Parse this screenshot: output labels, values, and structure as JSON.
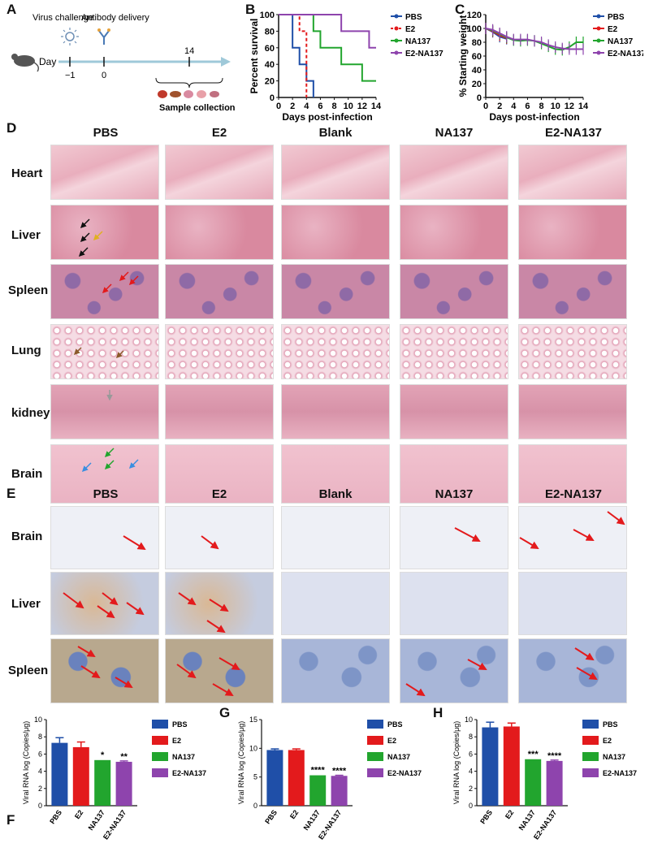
{
  "panels": {
    "A": "A",
    "B": "B",
    "C": "C",
    "D": "D",
    "E": "E",
    "F": "F",
    "G": "G",
    "H": "H"
  },
  "timeline": {
    "day_label": "Day",
    "virus_label": "Virus challenge",
    "antibody_label": "Antibody delivery",
    "sample_label": "Sample collection",
    "ticks": [
      "−1",
      "0",
      "14"
    ]
  },
  "groups": {
    "g1": "PBS",
    "g2": "E2",
    "g3": "Blank",
    "g4": "NA137",
    "g5": "E2-NA137"
  },
  "organs_he": {
    "o1": "Heart",
    "o2": "Liver",
    "o3": "Spleen",
    "o4": "Lung",
    "o5": "kidney",
    "o6": "Brain"
  },
  "organs_ihc": {
    "o1": "Brain",
    "o2": "Liver",
    "o3": "Spleen"
  },
  "colors": {
    "PBS": "#1f4fa8",
    "E2": "#e31a1c",
    "NA137": "#22a52e",
    "E2-NA137": "#8e44ad",
    "arrow": "#e31a1c"
  },
  "chart_data": [
    {
      "id": "B",
      "type": "line",
      "xlabel": "Days post-infection",
      "ylabel": "Percent survival",
      "xlim": [
        0,
        14
      ],
      "ylim": [
        0,
        100
      ],
      "xticks": [
        "0",
        "2",
        "4",
        "6",
        "8",
        "10",
        "12",
        "14"
      ],
      "yticks": [
        "0",
        "20",
        "40",
        "60",
        "80",
        "100"
      ],
      "legend": [
        "PBS",
        "E2",
        "NA137",
        "E2-NA137"
      ],
      "series": [
        {
          "name": "PBS",
          "steps": [
            [
              0,
              100
            ],
            [
              2,
              100
            ],
            [
              2,
              60
            ],
            [
              3,
              60
            ],
            [
              3,
              40
            ],
            [
              4,
              40
            ],
            [
              4,
              20
            ],
            [
              5,
              20
            ],
            [
              5,
              0
            ]
          ]
        },
        {
          "name": "E2",
          "steps": [
            [
              0,
              100
            ],
            [
              3,
              100
            ],
            [
              3,
              80
            ],
            [
              4,
              80
            ],
            [
              4,
              0
            ]
          ]
        },
        {
          "name": "NA137",
          "steps": [
            [
              0,
              100
            ],
            [
              5,
              100
            ],
            [
              5,
              80
            ],
            [
              6,
              80
            ],
            [
              6,
              60
            ],
            [
              9,
              60
            ],
            [
              9,
              40
            ],
            [
              12,
              40
            ],
            [
              12,
              20
            ],
            [
              14,
              20
            ]
          ]
        },
        {
          "name": "E2-NA137",
          "steps": [
            [
              0,
              100
            ],
            [
              9,
              100
            ],
            [
              9,
              80
            ],
            [
              13,
              80
            ],
            [
              13,
              60
            ],
            [
              14,
              60
            ]
          ]
        }
      ]
    },
    {
      "id": "C",
      "type": "line",
      "xlabel": "Days post-infection",
      "ylabel": "% Starting weight",
      "xlim": [
        0,
        14
      ],
      "ylim": [
        0,
        120
      ],
      "xticks": [
        "0",
        "2",
        "4",
        "6",
        "8",
        "10",
        "12",
        "14"
      ],
      "yticks": [
        "0",
        "20",
        "40",
        "60",
        "80",
        "100",
        "120"
      ],
      "legend": [
        "PBS",
        "E2",
        "NA137",
        "E2-NA137"
      ],
      "series": [
        {
          "name": "PBS",
          "x": [
            0,
            1,
            2,
            3
          ],
          "y": [
            100,
            95,
            88,
            85
          ]
        },
        {
          "name": "E2",
          "x": [
            0,
            1,
            2,
            3
          ],
          "y": [
            100,
            96,
            90,
            86
          ]
        },
        {
          "name": "NA137",
          "x": [
            0,
            1,
            2,
            3,
            4,
            5,
            6,
            7,
            8,
            9,
            10,
            11,
            12,
            13,
            14
          ],
          "y": [
            100,
            97,
            92,
            87,
            83,
            82,
            83,
            82,
            78,
            74,
            70,
            69,
            73,
            80,
            80
          ]
        },
        {
          "name": "E2-NA137",
          "x": [
            0,
            1,
            2,
            3,
            4,
            5,
            6,
            7,
            8,
            9,
            10,
            11,
            12,
            13,
            14
          ],
          "y": [
            100,
            98,
            93,
            88,
            84,
            84,
            84,
            82,
            80,
            76,
            73,
            71,
            70,
            70,
            70
          ]
        }
      ]
    },
    {
      "id": "F",
      "type": "bar",
      "ylabel": "Viral RNA log (Copies/μg)",
      "categories": [
        "PBS",
        "E2",
        "NA137",
        "E2-NA137"
      ],
      "values": [
        7.3,
        6.8,
        5.3,
        5.1
      ],
      "errors": [
        0.6,
        0.6,
        0,
        0.1
      ],
      "sig": [
        "",
        "",
        "*",
        "**"
      ],
      "ylim": [
        0,
        10
      ],
      "yticks": [
        "0",
        "2",
        "4",
        "6",
        "8",
        "10"
      ],
      "legend": [
        "PBS",
        "E2",
        "NA137",
        "E2-NA137"
      ]
    },
    {
      "id": "G",
      "type": "bar",
      "ylabel": "Viral RNA log (Copies/μg)",
      "categories": [
        "PBS",
        "E2",
        "NA137",
        "E2-NA137"
      ],
      "values": [
        9.7,
        9.7,
        5.3,
        5.2
      ],
      "errors": [
        0.2,
        0.2,
        0,
        0.1
      ],
      "sig": [
        "",
        "",
        "****",
        "****"
      ],
      "ylim": [
        0,
        15
      ],
      "yticks": [
        "0",
        "5",
        "10",
        "15"
      ],
      "legend": [
        "PBS",
        "E2",
        "NA137",
        "E2-NA137"
      ]
    },
    {
      "id": "H",
      "type": "bar",
      "ylabel": "Viral RNA log (Copies/μg)",
      "categories": [
        "PBS",
        "E2",
        "NA137",
        "E2-NA137"
      ],
      "values": [
        9.1,
        9.2,
        5.4,
        5.2
      ],
      "errors": [
        0.6,
        0.4,
        0,
        0.1
      ],
      "sig": [
        "",
        "",
        "***",
        "****"
      ],
      "ylim": [
        0,
        10
      ],
      "yticks": [
        "0",
        "2",
        "4",
        "6",
        "8",
        "10"
      ],
      "legend": [
        "PBS",
        "E2",
        "NA137",
        "E2-NA137"
      ]
    }
  ]
}
